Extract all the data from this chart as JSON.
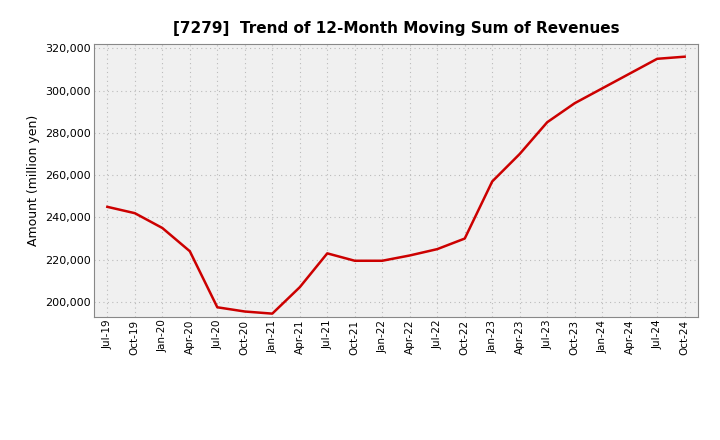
{
  "title": "[7279]  Trend of 12-Month Moving Sum of Revenues",
  "ylabel": "Amount (million yen)",
  "line_color": "#cc0000",
  "line_width": 1.8,
  "background_color": "#ffffff",
  "plot_bg_color": "#f0f0f0",
  "grid_color": "#bbbbbb",
  "ylim": [
    193000,
    322000
  ],
  "yticks": [
    200000,
    220000,
    240000,
    260000,
    280000,
    300000,
    320000
  ],
  "x_labels": [
    "Jul-19",
    "Oct-19",
    "Jan-20",
    "Apr-20",
    "Jul-20",
    "Oct-20",
    "Jan-21",
    "Apr-21",
    "Jul-21",
    "Oct-21",
    "Jan-22",
    "Apr-22",
    "Jul-22",
    "Oct-22",
    "Jan-23",
    "Apr-23",
    "Jul-23",
    "Oct-23",
    "Jan-24",
    "Apr-24",
    "Jul-24",
    "Oct-24"
  ],
  "values": [
    245000,
    242000,
    235000,
    224000,
    197500,
    195500,
    194500,
    207000,
    223000,
    219500,
    219500,
    222000,
    225000,
    230000,
    257000,
    270000,
    285000,
    294000,
    301000,
    308000,
    315000,
    316000
  ]
}
